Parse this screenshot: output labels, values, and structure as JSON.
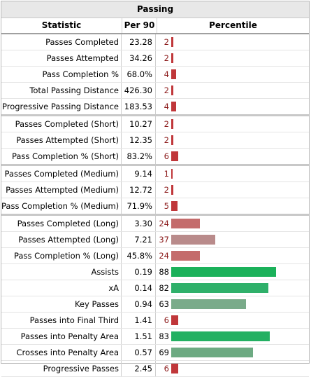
{
  "title": "Passing",
  "columns": [
    "Statistic",
    "Per 90",
    "Percentile"
  ],
  "groups": [
    [
      {
        "stat": "Passes Completed",
        "per90": "23.28",
        "pct": 2,
        "color": "#c0373a"
      },
      {
        "stat": "Passes Attempted",
        "per90": "34.26",
        "pct": 2,
        "color": "#c0373a"
      },
      {
        "stat": "Pass Completion %",
        "per90": "68.0%",
        "pct": 4,
        "color": "#c0373a"
      },
      {
        "stat": "Total Passing Distance",
        "per90": "426.30",
        "pct": 2,
        "color": "#c0373a"
      },
      {
        "stat": "Progressive Passing Distance",
        "per90": "183.53",
        "pct": 4,
        "color": "#c0373a"
      }
    ],
    [
      {
        "stat": "Passes Completed (Short)",
        "per90": "10.27",
        "pct": 2,
        "color": "#c0373a"
      },
      {
        "stat": "Passes Attempted (Short)",
        "per90": "12.35",
        "pct": 2,
        "color": "#c0373a"
      },
      {
        "stat": "Pass Completion % (Short)",
        "per90": "83.2%",
        "pct": 6,
        "color": "#c0373a"
      }
    ],
    [
      {
        "stat": "Passes Completed (Medium)",
        "per90": "9.14",
        "pct": 1,
        "color": "#c0373a"
      },
      {
        "stat": "Passes Attempted (Medium)",
        "per90": "12.72",
        "pct": 2,
        "color": "#c0373a"
      },
      {
        "stat": "Pass Completion % (Medium)",
        "per90": "71.9%",
        "pct": 5,
        "color": "#c0373a"
      }
    ],
    [
      {
        "stat": "Passes Completed (Long)",
        "per90": "3.30",
        "pct": 24,
        "color": "#c46c6c"
      },
      {
        "stat": "Passes Attempted (Long)",
        "per90": "7.21",
        "pct": 37,
        "color": "#b98b8b"
      },
      {
        "stat": "Pass Completion % (Long)",
        "per90": "45.8%",
        "pct": 24,
        "color": "#c46c6c"
      },
      {
        "stat": "Assists",
        "per90": "0.19",
        "pct": 88,
        "color": "#1bb15a"
      },
      {
        "stat": "xA",
        "per90": "0.14",
        "pct": 82,
        "color": "#2fb06a"
      },
      {
        "stat": "Key Passes",
        "per90": "0.94",
        "pct": 63,
        "color": "#7aab8a"
      },
      {
        "stat": "Passes into Final Third",
        "per90": "1.41",
        "pct": 6,
        "color": "#c0373a"
      },
      {
        "stat": "Passes into Penalty Area",
        "per90": "1.51",
        "pct": 83,
        "color": "#23b062"
      },
      {
        "stat": "Crosses into Penalty Area",
        "per90": "0.57",
        "pct": 69,
        "color": "#6daa82"
      },
      {
        "stat": "Progressive Passes",
        "per90": "2.45",
        "pct": 6,
        "color": "#c0373a"
      }
    ]
  ],
  "pct_text_colors": {
    "low": "#8b1a1a",
    "high": "#000000"
  }
}
